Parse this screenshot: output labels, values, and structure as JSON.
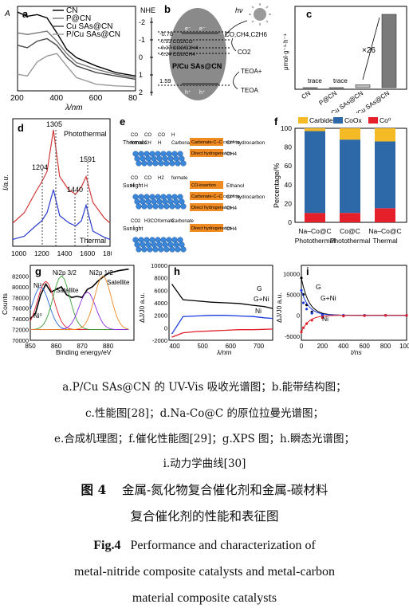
{
  "panels": {
    "a": {
      "label": "a",
      "ylabel": "A",
      "xlabel": "λ/nm",
      "xticks": [
        "200",
        "400",
        "600",
        "800"
      ],
      "legend": [
        "CN",
        "P@CN",
        "Cu SAs@CN",
        "P/Cu SAs@CN"
      ]
    },
    "b": {
      "label": "b",
      "axis_title": "NHE",
      "ticks": [
        "-2",
        "-1",
        "0",
        "1",
        "2"
      ],
      "levels": [
        "-0.78",
        "-0.53 CO2/CO",
        "-0.27 CO2/C2H4",
        "-0.24 CO2/CH4",
        "1.59"
      ],
      "labels": {
        "hv": "hν",
        "catalyst": "P/Cu SAs@CN",
        "products": "CO,CH4,C2H6",
        "co2": "CO2",
        "teoa_plus": "TEOA+",
        "teoa": "TEOA",
        "e": "e⁻",
        "h": "h⁺"
      }
    },
    "c": {
      "label": "c",
      "ylabel": "μmol·g⁻¹·h⁻¹",
      "categories": [
        "CN",
        "P@CN",
        "Cu SAs@CN",
        "P/Cu SAs@CN"
      ],
      "annotations": [
        "trace",
        "trace"
      ],
      "factor": "×26"
    },
    "d": {
      "label": "d",
      "ylabel": "I/a.u.",
      "xticks": [
        "1000",
        "1200",
        "1400",
        "1600",
        "1800"
      ],
      "peaks": [
        "1305",
        "1204",
        "1440",
        "1591"
      ],
      "series": [
        "Photothermal",
        "Thermal"
      ]
    },
    "e": {
      "label": "e",
      "rows": [
        {
          "cond": "Thermal",
          "species": [
            "CO",
            "CO",
            "CO",
            "H",
            "formate",
            "CH",
            "H",
            "Carbonate"
          ],
          "steps": [
            "Carbonate-C–C coupling",
            "Direct hydrogenation"
          ],
          "products": [
            "C²⁺ hydrocarbon",
            "CH4"
          ]
        },
        {
          "cond": "Sunlight",
          "species": [
            "CO",
            "CO",
            "H2",
            "formate",
            "H",
            "H"
          ],
          "steps": [
            "CO-insertion",
            "Carbonate-C–C coupling",
            "Direct hydrogenation"
          ],
          "products": [
            "Ethanol",
            "C²⁺ hydrocarbon",
            "CH4"
          ]
        },
        {
          "cond": "Sunlight",
          "species": [
            "CO2",
            "H3CO",
            "formate",
            "Carbonate"
          ],
          "steps": [
            "Direct hydrogenation"
          ],
          "products": [
            "CH4"
          ]
        }
      ]
    },
    "f": {
      "label": "f",
      "ylabel": "Percentage/%",
      "yticks": [
        "0",
        "20",
        "40",
        "60",
        "80",
        "100"
      ],
      "legend": [
        "Carbide",
        "CoOx",
        "Co⁰"
      ],
      "categories": [
        "Na–Co@C Photothermal",
        "Co@C Photothermal",
        "Na–Co@C Thermal"
      ]
    },
    "g": {
      "label": "g",
      "ylabel": "Counts",
      "xlabel": "Binding energy/eV",
      "yticks": [
        "70000",
        "72000",
        "74000",
        "76000",
        "78000",
        "80000",
        "82000"
      ],
      "xticks": [
        "850",
        "860",
        "870",
        "880"
      ],
      "annotations": [
        "Ni²⁺",
        "Ni2p 3/2",
        "Satellite",
        "Ni2p 1/2",
        "Satellite",
        "Ni⁰"
      ]
    },
    "h": {
      "label": "h",
      "ylabel": "ΔJ/J0 a.u.",
      "xlabel": "λ/nm",
      "yticks": [
        "10000",
        "8000",
        "6000",
        "4000",
        "2000",
        "0",
        "-2000"
      ],
      "xticks": [
        "400",
        "500",
        "600",
        "700"
      ],
      "series": [
        "G",
        "G+Ni",
        "Ni"
      ]
    },
    "i": {
      "label": "i",
      "ylabel": "ΔJ/J0 a.u.",
      "xlabel": "t/ns",
      "yticks": [
        "10000",
        "5000",
        "0",
        "-5000"
      ],
      "xticks": [
        "0",
        "200",
        "400",
        "600",
        "800",
        "1000"
      ],
      "series": [
        "G",
        "G+Ni",
        "Ni"
      ]
    }
  },
  "caption": {
    "lines": [
      "a.P/Cu SAs@CN 的 UV-Vis 吸收光谱图；b.能带结构图；",
      "c.性能图[28]；d.Na-Co@C 的原位拉曼光谱图；",
      "e.合成机理图；f.催化性能图[29]；g.XPS 图；h.瞬态光谱图；",
      "i.动力学曲线[30]"
    ],
    "cn_label": "图 4",
    "cn_title_1": "金属-氮化物复合催化剂和金属-碳材料",
    "cn_title_2": "复合催化剂的性能和表征图",
    "en_label": "Fig.4",
    "en_title_1": "Performance and characterization of",
    "en_title_2": "metal-nitride composite catalysts and metal-carbon",
    "en_title_3": "material composite catalysts"
  },
  "chart_data": [
    {
      "type": "line",
      "panel": "a",
      "xlabel": "λ/nm",
      "ylabel": "A",
      "xlim": [
        200,
        800
      ],
      "series": [
        {
          "name": "CN",
          "x": [
            200,
            250,
            300,
            350,
            400,
            450,
            500,
            600,
            700,
            800
          ],
          "values": [
            0.95,
            0.9,
            0.92,
            0.88,
            0.7,
            0.5,
            0.4,
            0.3,
            0.22,
            0.18
          ]
        },
        {
          "name": "P@CN",
          "x": [
            200,
            250,
            300,
            350,
            400,
            450,
            500,
            600,
            700,
            800
          ],
          "values": [
            0.7,
            0.68,
            0.7,
            0.72,
            0.6,
            0.45,
            0.34,
            0.26,
            0.2,
            0.16
          ]
        },
        {
          "name": "Cu SAs@CN",
          "x": [
            200,
            250,
            300,
            350,
            400,
            450,
            500,
            600,
            700,
            800
          ],
          "values": [
            0.55,
            0.52,
            0.6,
            0.63,
            0.55,
            0.4,
            0.3,
            0.22,
            0.18,
            0.14
          ]
        },
        {
          "name": "P/Cu SAs@CN",
          "x": [
            200,
            250,
            300,
            350,
            400,
            450,
            500,
            600,
            700,
            800
          ],
          "values": [
            0.2,
            0.18,
            0.35,
            0.42,
            0.45,
            0.3,
            0.16,
            0.08,
            0.06,
            0.05
          ]
        }
      ]
    },
    {
      "type": "bar",
      "panel": "c",
      "categories": [
        "CN",
        "P@CN",
        "Cu SAs@CN",
        "P/Cu SAs@CN"
      ],
      "values": [
        0,
        0,
        0.04,
        1.0
      ],
      "ylabel": "μmol·g⁻¹·h⁻¹"
    },
    {
      "type": "bar",
      "panel": "f",
      "stacked": true,
      "categories": [
        "Na–Co@C Photothermal",
        "Co@C Photothermal",
        "Na–Co@C Thermal"
      ],
      "ylabel": "Percentage/%",
      "ylim": [
        0,
        100
      ],
      "series": [
        {
          "name": "Co⁰",
          "values": [
            10,
            10,
            15
          ]
        },
        {
          "name": "CoOx",
          "values": [
            87,
            78,
            71
          ]
        },
        {
          "name": "Carbide",
          "values": [
            3,
            12,
            14
          ]
        }
      ]
    },
    {
      "type": "line",
      "panel": "d",
      "ylabel": "I/a.u.",
      "xlim": [
        950,
        1800
      ],
      "series": [
        {
          "name": "Photothermal",
          "x": [
            950,
            1050,
            1150,
            1204,
            1250,
            1305,
            1360,
            1440,
            1500,
            1550,
            1591,
            1650,
            1750,
            1800
          ],
          "values": [
            0.1,
            0.2,
            0.4,
            0.5,
            0.6,
            1.0,
            0.55,
            0.42,
            0.38,
            0.45,
            0.55,
            0.3,
            0.15,
            0.1
          ]
        },
        {
          "name": "Thermal",
          "x": [
            950,
            1050,
            1150,
            1204,
            1250,
            1305,
            1360,
            1440,
            1500,
            1550,
            1591,
            1650,
            1750,
            1800
          ],
          "values": [
            0.02,
            0.05,
            0.15,
            0.2,
            0.28,
            0.5,
            0.25,
            0.18,
            0.15,
            0.2,
            0.35,
            0.1,
            0.04,
            0.02
          ]
        }
      ]
    },
    {
      "type": "line",
      "panel": "h",
      "xlabel": "λ/nm",
      "ylabel": "ΔJ/J0 a.u.",
      "xlim": [
        380,
        750
      ],
      "ylim": [
        -2000,
        10000
      ],
      "series": [
        {
          "name": "G",
          "x": [
            390,
            430,
            480,
            530,
            580,
            630,
            680,
            720,
            750
          ],
          "values": [
            7000,
            4500,
            4300,
            4100,
            4000,
            3900,
            3600,
            3400,
            3100
          ]
        },
        {
          "name": "G+Ni",
          "x": [
            390,
            430,
            480,
            530,
            580,
            630,
            680,
            720,
            750
          ],
          "values": [
            -1000,
            1800,
            1900,
            2000,
            2000,
            1900,
            1800,
            1600,
            1500
          ]
        },
        {
          "name": "Ni",
          "x": [
            390,
            430,
            480,
            530,
            580,
            630,
            680,
            720,
            750
          ],
          "values": [
            -1500,
            -800,
            -600,
            -500,
            -400,
            -300,
            -300,
            -250,
            -200
          ]
        }
      ]
    },
    {
      "type": "scatter",
      "panel": "i",
      "xlabel": "t/ns",
      "ylabel": "ΔJ/J0 a.u.",
      "xlim": [
        0,
        1000
      ],
      "series": [
        {
          "name": "G",
          "x": [
            0,
            20,
            50,
            100,
            200,
            400,
            600,
            800,
            1000
          ],
          "values": [
            9000,
            5000,
            2500,
            800,
            200,
            0,
            0,
            0,
            0
          ]
        },
        {
          "name": "G+Ni",
          "x": [
            0,
            20,
            50,
            100,
            200,
            400,
            600,
            800,
            1000
          ],
          "values": [
            6000,
            3000,
            1500,
            500,
            100,
            0,
            0,
            0,
            0
          ]
        },
        {
          "name": "Ni",
          "x": [
            0,
            20,
            50,
            100,
            200,
            400,
            600,
            800,
            1000
          ],
          "values": [
            -4000,
            -3000,
            -2000,
            -1200,
            -600,
            -200,
            -100,
            0,
            0
          ]
        }
      ]
    },
    {
      "type": "line",
      "panel": "g",
      "xlabel": "Binding energy/eV",
      "ylabel": "Counts",
      "xlim": [
        850,
        890
      ],
      "series": [
        {
          "name": "",
          "x": [
            850,
            852,
            854,
            856,
            858,
            860,
            862,
            864,
            866,
            868,
            870,
            872,
            874,
            876,
            878,
            880,
            884,
            888
          ],
          "values": [
            74000,
            75000,
            78500,
            80500,
            79000,
            79500,
            80000,
            78500,
            78000,
            78200,
            78000,
            79500,
            80000,
            81000,
            81800,
            82500,
            83000,
            83300
          ]
        }
      ]
    }
  ],
  "colors": {
    "carbide": "#f5bb27",
    "coox": "#2d69a8",
    "co0": "#e5202a",
    "g": "#000000",
    "gni": "#1a3ae0",
    "ni": "#e0202a"
  }
}
